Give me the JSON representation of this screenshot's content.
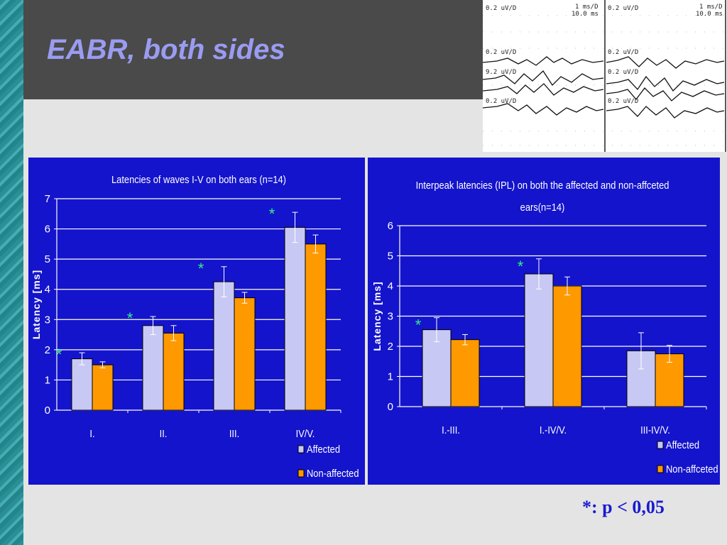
{
  "slide": {
    "title": "EABR, both sides",
    "footnote": "*: p < 0,05"
  },
  "eeg_labels": {
    "row1_left": "0.2 uV/D",
    "row1_mid_a": "1 ms/D",
    "row1_mid_b": "10.0 ms",
    "row1_right": "0.2 uV/D",
    "row1_far_a": "1 ms/D",
    "row1_far_b": "10.0 ms",
    "row2_left": "0.2 uV/D",
    "row2_right": "0.2 uV/D",
    "row3_left": "9.2 uV/D",
    "row3_right": "0.2 uV/D",
    "row4_left": "0.2 uV/D",
    "row4_right": "0.2 uV/D"
  },
  "chart_data": [
    {
      "type": "bar",
      "title": "Latencies of waves I-V on both ears (n=14)",
      "ylabel": "Latency [ms]",
      "xlabel": "",
      "categories": [
        "I.",
        "II.",
        "III.",
        "IV/V."
      ],
      "series": [
        {
          "name": "Affected",
          "values": [
            1.7,
            2.8,
            4.25,
            6.05
          ],
          "errors": [
            0.2,
            0.3,
            0.5,
            0.5
          ],
          "color": "#c8c8f4"
        },
        {
          "name": "Non-affected",
          "values": [
            1.5,
            2.55,
            3.72,
            5.5
          ],
          "errors": [
            0.1,
            0.25,
            0.18,
            0.3
          ],
          "color": "#ff9900"
        }
      ],
      "significance": [
        true,
        true,
        true,
        true
      ],
      "significance_marker": "*",
      "ylim": [
        0,
        7
      ],
      "yticks": [
        0,
        1,
        2,
        3,
        4,
        5,
        6,
        7
      ],
      "grid": true,
      "legend": "bottom-right"
    },
    {
      "type": "bar",
      "title": "Interpeak latencies (IPL) on both the affected and non-affceted ears(n=14)",
      "ylabel": "Latency [ms]",
      "xlabel": "",
      "categories": [
        "I.-III.",
        "I.-IV/V.",
        "III-IV/V."
      ],
      "series": [
        {
          "name": "Affected",
          "values": [
            2.55,
            4.4,
            1.85
          ],
          "errors": [
            0.4,
            0.5,
            0.6
          ],
          "color": "#c8c8f4"
        },
        {
          "name": "Non-affceted",
          "values": [
            2.22,
            4.0,
            1.75
          ],
          "errors": [
            0.17,
            0.3,
            0.28
          ],
          "color": "#ff9900"
        }
      ],
      "significance": [
        true,
        true,
        false
      ],
      "significance_marker": "*",
      "ylim": [
        0,
        6
      ],
      "yticks": [
        0,
        1,
        2,
        3,
        4,
        5,
        6
      ],
      "grid": true,
      "legend": "bottom-right"
    }
  ]
}
